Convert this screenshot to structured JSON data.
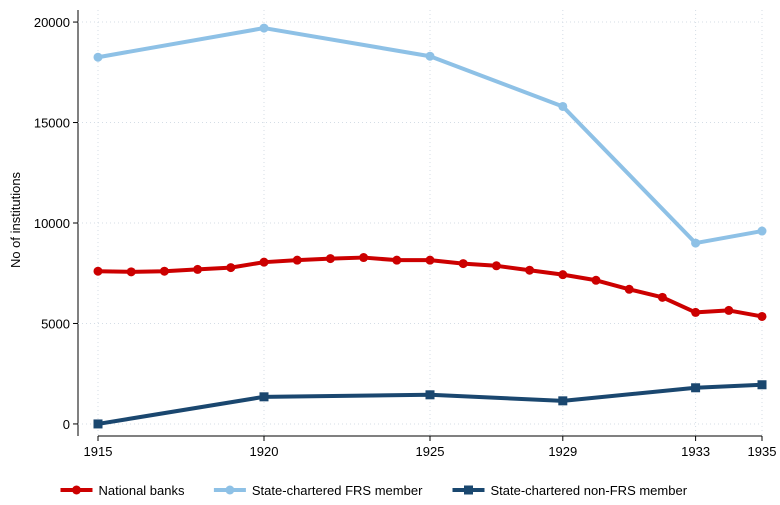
{
  "chart_data": {
    "type": "line",
    "y_label": "No of institutions",
    "xlim": [
      1915,
      1935
    ],
    "xticks": [
      1915,
      1920,
      1925,
      1929,
      1933,
      1935
    ],
    "ylim": [
      -600,
      20600
    ],
    "yticks": [
      0,
      5000,
      10000,
      15000,
      20000
    ],
    "grid": true,
    "legend": "bottom",
    "series": [
      {
        "name": "National banks",
        "color": "#cc0000",
        "marker": "circle",
        "x": [
          1915,
          1916,
          1917,
          1918,
          1919,
          1920,
          1921,
          1922,
          1923,
          1924,
          1925,
          1926,
          1927,
          1928,
          1929,
          1930,
          1931,
          1932,
          1933,
          1934,
          1935
        ],
        "values": [
          7600,
          7570,
          7600,
          7690,
          7780,
          8050,
          8150,
          8230,
          8280,
          8150,
          8150,
          7980,
          7870,
          7650,
          7430,
          7150,
          6700,
          6300,
          5550,
          5650,
          5350
        ]
      },
      {
        "name": "State-chartered FRS member",
        "color": "#8ec1e6",
        "marker": "circle",
        "x": [
          1915,
          1920,
          1925,
          1929,
          1933,
          1935
        ],
        "values": [
          18250,
          19700,
          18300,
          15800,
          9000,
          9600
        ]
      },
      {
        "name": "State-chartered non-FRS member",
        "color": "#1a476f",
        "marker": "square",
        "x": [
          1915,
          1920,
          1925,
          1929,
          1933,
          1935
        ],
        "values": [
          0,
          1350,
          1450,
          1150,
          1800,
          1950
        ]
      }
    ]
  }
}
